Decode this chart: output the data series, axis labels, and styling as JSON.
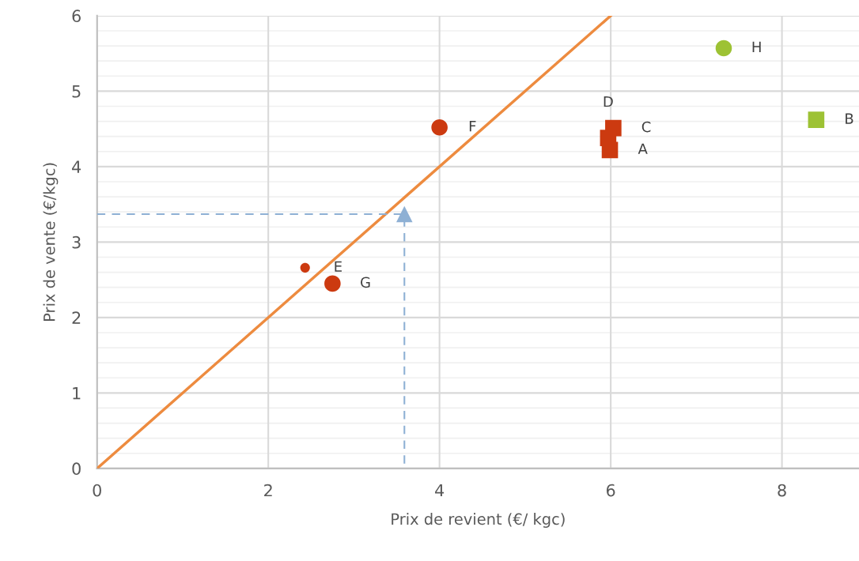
{
  "chart_data": {
    "type": "scatter",
    "xlabel": "Prix de revient (€/ kgc)",
    "ylabel": "Prix de vente (€/kgc)",
    "xlim": [
      0,
      8.9
    ],
    "ylim": [
      0,
      6
    ],
    "xticks": [
      0,
      2,
      4,
      6,
      8
    ],
    "yticks": [
      0,
      1,
      2,
      3,
      4,
      5,
      6
    ],
    "grid": true,
    "series": [
      {
        "type": "line",
        "color": "#ed8b3f",
        "x": [
          0,
          6
        ],
        "values": [
          0,
          6
        ],
        "marker": "none",
        "line_style": "solid"
      },
      {
        "type": "line",
        "color": "#8eb0d4",
        "x": [
          0,
          3.59,
          3.59
        ],
        "values": [
          3.37,
          3.37,
          0
        ],
        "marker": "none",
        "line_style": "dashed"
      },
      {
        "color": "#8eb0d4",
        "x": [
          3.59
        ],
        "values": [
          3.37
        ],
        "marker": "triangle"
      },
      {
        "color": "#cc3a10",
        "x": [
          4.0,
          2.75,
          2.43
        ],
        "values": [
          4.52,
          2.45,
          2.66
        ],
        "sizes": [
          1,
          1,
          0.35
        ],
        "marker": "circle"
      },
      {
        "color": "#cc3a10",
        "x": [
          6.03,
          5.97,
          5.99
        ],
        "values": [
          4.51,
          4.38,
          4.22
        ],
        "marker": "square"
      },
      {
        "color": "#9dc234",
        "x": [
          7.32
        ],
        "values": [
          5.57
        ],
        "marker": "circle"
      },
      {
        "color": "#9dc234",
        "x": [
          8.4
        ],
        "values": [
          4.62
        ],
        "marker": "square"
      }
    ],
    "annotations": [
      {
        "text": "A",
        "x": 5.99,
        "y": 4.22
      },
      {
        "text": "B",
        "x": 8.4,
        "y": 4.62
      },
      {
        "text": "C",
        "x": 6.03,
        "y": 4.51
      },
      {
        "text": "D",
        "x": 5.97,
        "y": 4.38
      },
      {
        "text": "E",
        "x": 2.43,
        "y": 2.66
      },
      {
        "text": "F",
        "x": 4.0,
        "y": 4.52
      },
      {
        "text": "G",
        "x": 2.75,
        "y": 2.45
      },
      {
        "text": "H",
        "x": 7.32,
        "y": 5.57
      }
    ]
  }
}
